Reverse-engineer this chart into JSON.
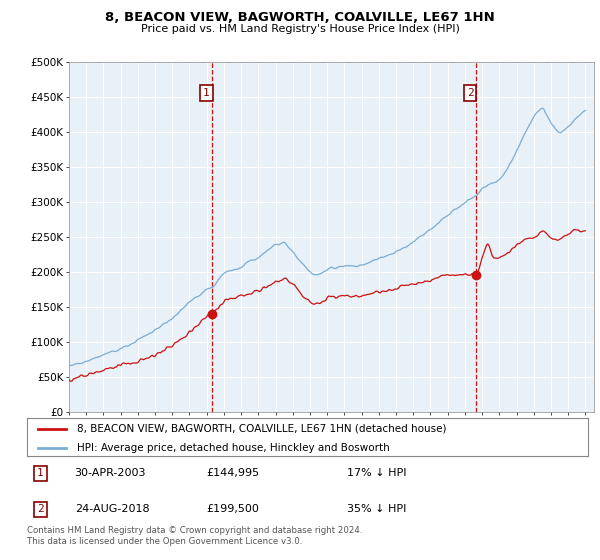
{
  "title": "8, BEACON VIEW, BAGWORTH, COALVILLE, LE67 1HN",
  "subtitle": "Price paid vs. HM Land Registry's House Price Index (HPI)",
  "legend_line1": "8, BEACON VIEW, BAGWORTH, COALVILLE, LE67 1HN (detached house)",
  "legend_line2": "HPI: Average price, detached house, Hinckley and Bosworth",
  "annotation1_label": "1",
  "annotation1_date": "30-APR-2003",
  "annotation1_price": "£144,995",
  "annotation1_hpi": "17% ↓ HPI",
  "annotation2_label": "2",
  "annotation2_date": "24-AUG-2018",
  "annotation2_price": "£199,500",
  "annotation2_hpi": "35% ↓ HPI",
  "footer": "Contains HM Land Registry data © Crown copyright and database right 2024.\nThis data is licensed under the Open Government Licence v3.0.",
  "sale1_year": 2003.33,
  "sale1_value": 144995,
  "sale2_year": 2018.65,
  "sale2_value": 199500,
  "hpi_color": "#7aadd4",
  "price_color": "#cc1111",
  "vline_color": "#cc1111",
  "bg_color": "#e8f0f8",
  "ylim_max": 500000,
  "ylim_min": 0,
  "xlim_min": 1995,
  "xlim_max": 2025.5
}
